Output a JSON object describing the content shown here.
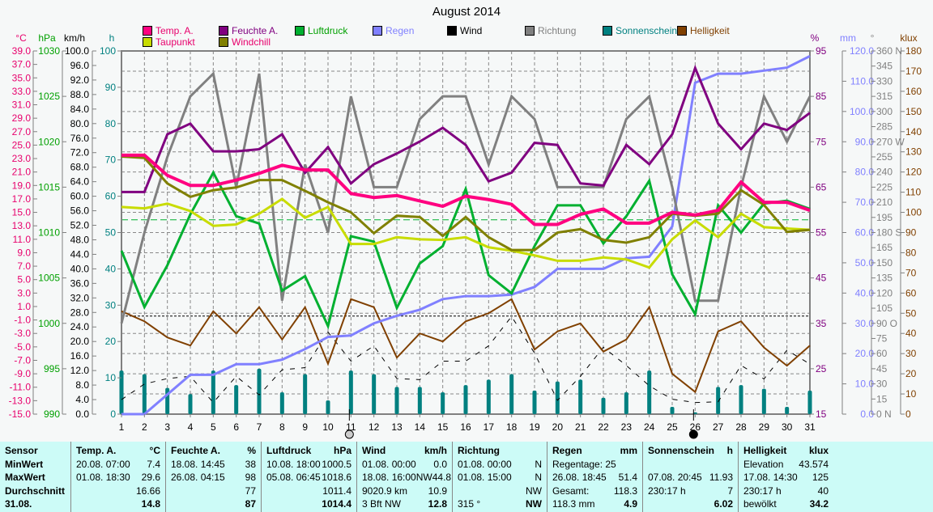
{
  "chart_data": {
    "type": "line",
    "title": "August 2014",
    "x": [
      1,
      2,
      3,
      4,
      5,
      6,
      7,
      8,
      9,
      10,
      11,
      12,
      13,
      14,
      15,
      16,
      17,
      18,
      19,
      20,
      21,
      22,
      23,
      24,
      25,
      26,
      27,
      28,
      29,
      30,
      31
    ],
    "xlabel": "",
    "grid": true,
    "axes": [
      {
        "id": "temp",
        "label": "°C",
        "color": "#e8006c",
        "range": [
          -15,
          39
        ],
        "ticks": [
          "39.0",
          "37.0",
          "35.0",
          "33.0",
          "31.0",
          "29.0",
          "27.0",
          "25.0",
          "23.0",
          "21.0",
          "19.0",
          "17.0",
          "15.0",
          "13.0",
          "11.0",
          "9.0",
          "7.0",
          "5.0",
          "3.0",
          "1.0",
          "-1.0",
          "-3.0",
          "-5.0",
          "-7.0",
          "-9.0",
          "-11.0",
          "-13.0",
          "-15.0"
        ]
      },
      {
        "id": "press",
        "label": "hPa",
        "color": "#00a000",
        "range": [
          990,
          1030
        ],
        "ticks": [
          "1030",
          "1025",
          "1020",
          "1015",
          "1010",
          "1005",
          "1000",
          "995",
          "990"
        ]
      },
      {
        "id": "wind",
        "label": "km/h",
        "color": "#000000",
        "range": [
          0,
          100
        ],
        "ticks": [
          "100.0",
          "96.0",
          "92.0",
          "88.0",
          "84.0",
          "80.0",
          "76.0",
          "72.0",
          "68.0",
          "64.0",
          "60.0",
          "56.0",
          "52.0",
          "48.0",
          "44.0",
          "40.0",
          "36.0",
          "32.0",
          "28.0",
          "24.0",
          "20.0",
          "16.0",
          "12.0",
          "8.0",
          "4.0",
          "0.0"
        ]
      },
      {
        "id": "sun",
        "label": "h",
        "color": "#008080",
        "range": [
          0,
          100
        ],
        "ticks": [
          "100",
          "90",
          "80",
          "70",
          "60",
          "50",
          "40",
          "30",
          "20",
          "10",
          "0"
        ]
      },
      {
        "id": "hum",
        "label": "%",
        "color": "#800080",
        "range": [
          15,
          100
        ],
        "ticks": [
          "95",
          "85",
          "75",
          "65",
          "55",
          "45",
          "35",
          "25",
          "15"
        ]
      },
      {
        "id": "rain",
        "label": "mm",
        "color": "#8080ff",
        "range": [
          0,
          120
        ],
        "ticks": [
          "120.0",
          "110.0",
          "100.0",
          "90.0",
          "80.0",
          "70.0",
          "60.0",
          "50.0",
          "40.0",
          "30.0",
          "20.0",
          "10.0",
          "0.0"
        ]
      },
      {
        "id": "dir",
        "label": "°",
        "color": "#808080",
        "range": [
          0,
          360
        ],
        "ticks": [
          "360 N",
          "345",
          "330",
          "315",
          "300",
          "285",
          "270 W",
          "255",
          "240",
          "225",
          "210",
          "195",
          "180 S",
          "165",
          "150",
          "135",
          "120",
          "105",
          "90  O",
          "75",
          "60",
          "45",
          "30",
          "15",
          "0   N"
        ]
      },
      {
        "id": "lux",
        "label": "klux",
        "color": "#804000",
        "range": [
          0,
          180
        ],
        "ticks": [
          "180",
          "170",
          "160",
          "150",
          "140",
          "130",
          "120",
          "110",
          "100",
          "90",
          "80",
          "70",
          "60",
          "50",
          "40",
          "30",
          "20",
          "10",
          "0"
        ]
      }
    ],
    "series": [
      {
        "name": "Temp. A.",
        "axis": "temp",
        "color": "#ff0080",
        "width": 4,
        "values": [
          23.5,
          23.5,
          20.5,
          19,
          19,
          19.8,
          20.8,
          22,
          21.3,
          21.3,
          17.8,
          17.2,
          17.5,
          16.7,
          15.9,
          17.4,
          16.9,
          16.2,
          13.2,
          13.2,
          14.7,
          15.5,
          13.4,
          13.4,
          15,
          14.6,
          15.3,
          19.5,
          16.5,
          16.5,
          15.3
        ]
      },
      {
        "name": "Taupunkt",
        "axis": "temp",
        "color": "#c8dc00",
        "width": 3,
        "values": [
          15.8,
          15.6,
          16.3,
          15.2,
          13.0,
          13.2,
          14.8,
          17.0,
          14.2,
          15.8,
          10.3,
          10.3,
          11.3,
          11.0,
          10.9,
          11.3,
          9.8,
          9.3,
          8.6,
          7.8,
          7.8,
          8.3,
          8.0,
          6.8,
          11.0,
          13.8,
          11.3,
          14.8,
          12.8,
          12.6,
          12.4
        ]
      },
      {
        "name": "Windchill",
        "axis": "temp",
        "color": "#808000",
        "width": 3,
        "values": [
          23.3,
          23.1,
          19.3,
          17.3,
          18.3,
          18.7,
          19.8,
          19.8,
          18.2,
          16.5,
          15.0,
          11.9,
          14.5,
          14.3,
          11.5,
          14.3,
          11.3,
          9.4,
          9.4,
          12.0,
          12.5,
          10.9,
          10.5,
          11.3,
          14.8,
          14.5,
          14.8,
          18.3,
          16.1,
          12.1,
          12.4
        ]
      },
      {
        "name": "Feuchte A.",
        "axis": "hum",
        "color": "#800080",
        "width": 3,
        "values": [
          67,
          67,
          80.5,
          83,
          76.5,
          76.5,
          77,
          80.5,
          71.5,
          77.5,
          69,
          73.5,
          76,
          78.8,
          82,
          78,
          69.5,
          71.5,
          78.5,
          78,
          69,
          68.5,
          78,
          73.5,
          80.5,
          96,
          83,
          77,
          83,
          81.5,
          85.5
        ]
      },
      {
        "name": "Luftdruck",
        "axis": "press",
        "color": "#00b030",
        "width": 3,
        "values": [
          1008,
          1001.8,
          1006.4,
          1012,
          1016.6,
          1011.8,
          1011,
          1003.6,
          1005.2,
          999.7,
          1009.6,
          1009.0,
          1001.7,
          1006.6,
          1008.5,
          1014.8,
          1005.3,
          1003.3,
          1008.5,
          1013,
          1013,
          1008.8,
          1011.8,
          1015.7,
          1005.4,
          1001,
          1013,
          1010,
          1013.2,
          1013.5,
          1012.6
        ]
      },
      {
        "name": "Regen",
        "axis": "rain",
        "color": "#8080ff",
        "width": 3,
        "values": [
          0,
          0,
          6.5,
          13,
          13,
          16.5,
          16.5,
          18,
          21.5,
          25.5,
          26,
          30,
          32.5,
          34.5,
          38,
          39,
          39,
          39.5,
          42,
          48,
          48,
          48,
          51.5,
          52,
          62,
          109.5,
          112.5,
          112.5,
          113.5,
          114.5,
          118.3
        ]
      },
      {
        "name": "Wind",
        "axis": "wind",
        "color": "#000000",
        "width": 1,
        "dashed": true,
        "values": [
          4,
          8.3,
          9.8,
          10.4,
          3.2,
          10.4,
          5.3,
          12.2,
          12.8,
          22.6,
          14.6,
          18.8,
          9.8,
          9.5,
          14.6,
          14.6,
          18.8,
          26.9,
          16.8,
          3.8,
          10.4,
          18.4,
          13.4,
          7.8,
          4.1,
          3.2,
          3.4,
          13.4,
          9.7,
          17.6,
          13.8
        ]
      },
      {
        "name": "Richtung",
        "axis": "dir",
        "color": "#808080",
        "width": 3,
        "values": [
          90,
          180,
          255,
          315,
          337.5,
          225,
          337.5,
          112.5,
          247.5,
          180,
          315,
          225,
          225,
          292.5,
          315,
          315,
          247.5,
          315,
          292.5,
          225,
          225,
          225,
          292.5,
          315,
          225,
          112.5,
          112.5,
          225,
          315,
          270,
          315
        ]
      },
      {
        "name": "Sonnenschein",
        "axis": "sun",
        "color": "#008080",
        "type": "bar",
        "values": [
          12,
          11,
          7.2,
          5.5,
          12,
          8,
          12.5,
          6,
          11,
          3.8,
          12,
          11,
          7.5,
          7.5,
          6,
          8,
          9.5,
          11,
          6.5,
          9,
          9.5,
          4.5,
          6,
          12,
          2,
          0.5,
          7.5,
          8,
          7,
          2,
          6.5
        ]
      },
      {
        "name": "Helligkeit",
        "axis": "lux",
        "color": "#804000",
        "width": 2,
        "values": [
          51,
          46,
          38,
          34,
          51,
          40,
          53,
          37,
          53,
          25,
          57,
          53,
          28,
          40,
          36,
          46,
          50,
          57,
          32,
          41,
          45,
          31,
          37,
          53,
          20,
          11,
          41,
          46,
          33,
          24,
          34
        ]
      }
    ],
    "reference_lines": [
      {
        "axis": "press",
        "value": 1011.4,
        "color": "#00b030"
      },
      {
        "axis": "wind",
        "value": 27,
        "color": "#000000"
      }
    ],
    "markers": [
      {
        "day": 11,
        "symbol": "full-moon"
      },
      {
        "day": 26,
        "symbol": "new-moon"
      }
    ]
  },
  "legend": [
    {
      "label": "Temp. A.",
      "color": "#ff0080",
      "text": "#e8006c"
    },
    {
      "label": "Taupunkt",
      "color": "#c8dc00",
      "text": "#e8006c"
    },
    {
      "label": "Feuchte A.",
      "color": "#800080",
      "text": "#800080"
    },
    {
      "label": "Windchill",
      "color": "#808000",
      "text": "#e8006c"
    },
    {
      "label": "Luftdruck",
      "color": "#00b030",
      "text": "#00a000"
    },
    {
      "label": "Regen",
      "color": "#8080ff",
      "text": "#8080ff"
    },
    {
      "label": "Wind",
      "color": "#000000",
      "text": "#000000"
    },
    {
      "label": "Richtung",
      "color": "#808080",
      "text": "#808080"
    },
    {
      "label": "Sonnenschein",
      "color": "#008080",
      "text": "#008080"
    },
    {
      "label": "Helligkeit",
      "color": "#804000",
      "text": "#804000"
    }
  ],
  "stats": {
    "sensor": {
      "header": "Sensor",
      "rows": [
        "MinWert",
        "MaxWert",
        "Durchschnitt",
        "31.08."
      ]
    },
    "temp": {
      "header": "Temp. A.",
      "unit": "°C",
      "rows": [
        [
          "20.08.  07:00",
          "7.4"
        ],
        [
          "01.08.  18:30",
          "29.6"
        ],
        [
          "",
          "16.66"
        ],
        [
          "",
          "14.8"
        ]
      ]
    },
    "hum": {
      "header": "Feuchte A.",
      "unit": "%",
      "rows": [
        [
          "18.08.  14:45",
          "38"
        ],
        [
          "26.08.  04:15",
          "98"
        ],
        [
          "",
          "77"
        ],
        [
          "",
          "87"
        ]
      ]
    },
    "press": {
      "header": "Luftdruck",
      "unit": "hPa",
      "rows": [
        [
          "10.08.  18:00",
          "1000.5"
        ],
        [
          "05.08.  06:45",
          "1018.6"
        ],
        [
          "",
          "1011.4"
        ],
        [
          "",
          "1014.4"
        ]
      ]
    },
    "wind": {
      "header": "Wind",
      "unit": "km/h",
      "rows": [
        [
          "01.08.  00:00",
          "0.0"
        ],
        [
          "18.08.  16:00NW",
          "44.8"
        ],
        [
          "9020.9 km",
          "10.9"
        ],
        [
          " 3 Bft NW",
          "12.8"
        ]
      ]
    },
    "dir": {
      "header": "Richtung",
      "unit": "",
      "rows": [
        [
          "01.08.  00:00",
          "N"
        ],
        [
          "01.08.  15:00",
          "N"
        ],
        [
          "",
          "NW"
        ],
        [
          " 315 °",
          "NW"
        ]
      ]
    },
    "rain": {
      "header": "Regen",
      "unit": "mm",
      "rows": [
        [
          "Regentage: 25",
          ""
        ],
        [
          "26.08.  18:45",
          "51.4"
        ],
        [
          "Gesamt:",
          "118.3"
        ],
        [
          " 118.3 mm",
          "4.9"
        ]
      ]
    },
    "sun": {
      "header": "Sonnenschein",
      "unit": "h",
      "rows": [
        [
          "",
          ""
        ],
        [
          "07.08.  20:45",
          "11.93"
        ],
        [
          "230:17 h",
          "7"
        ],
        [
          "",
          "6.02"
        ]
      ]
    },
    "lux": {
      "header": "Helligkeit",
      "unit": "klux",
      "rows": [
        [
          "Elevation",
          "43.574"
        ],
        [
          "17.08.  14:30",
          "125"
        ],
        [
          "230:17 h",
          "40"
        ],
        [
          "bewölkt",
          "34.2"
        ]
      ]
    }
  }
}
